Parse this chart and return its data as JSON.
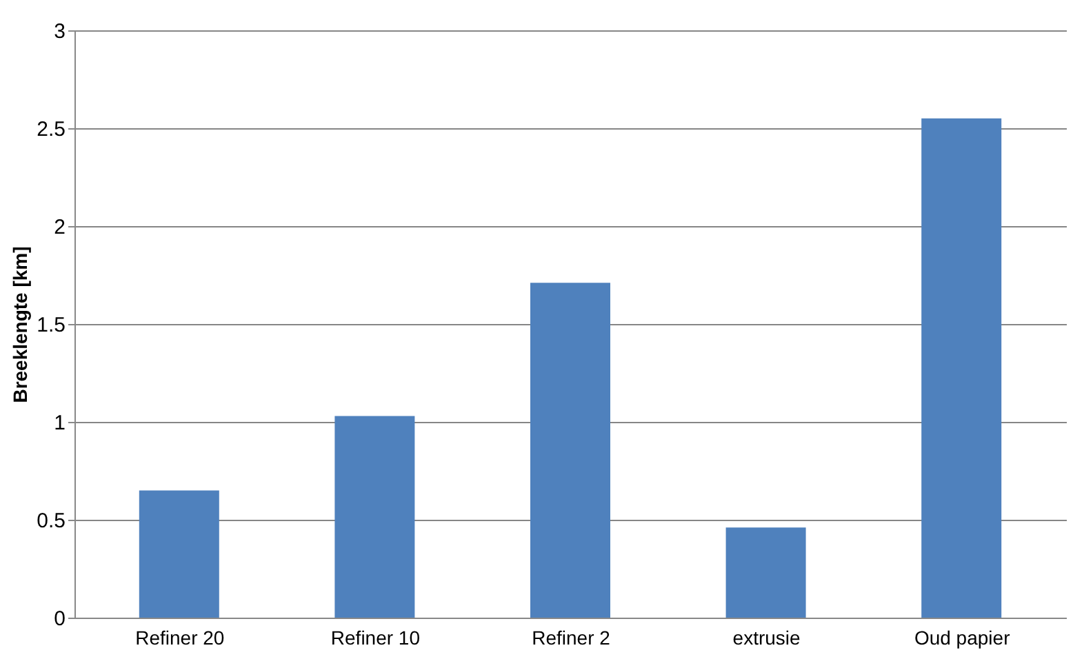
{
  "chart_data": {
    "type": "bar",
    "ylabel": "Breeklengte [km]",
    "categories": [
      "Refiner 20",
      "Refiner 10",
      "Refiner 2",
      "extrusie",
      "Oud papier"
    ],
    "values": [
      0.65,
      1.03,
      1.71,
      0.46,
      2.55
    ],
    "color": "#4f81bd",
    "ylim": [
      0,
      3
    ],
    "yticks": [
      0,
      0.5,
      1,
      1.5,
      2,
      2.5,
      3
    ],
    "grid": "y"
  }
}
